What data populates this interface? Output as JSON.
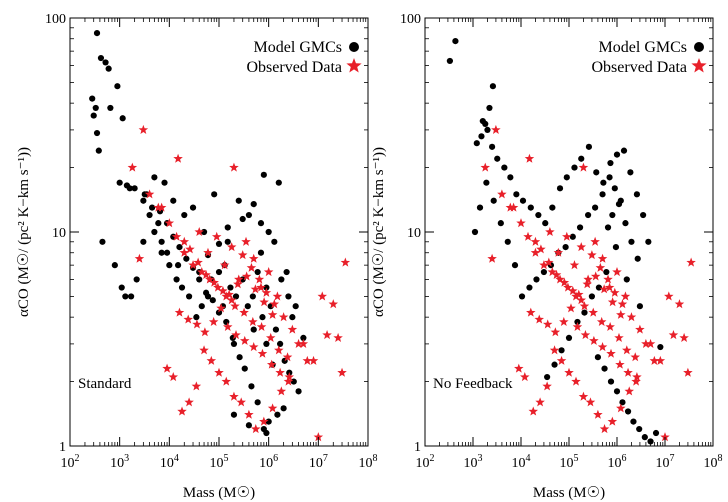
{
  "chart_data": [
    {
      "type": "scatter",
      "panel_label": "Standard",
      "xlabel": "Mass (M☉)",
      "ylabel": "αCO (M☉/ (pc² K−km s⁻¹))",
      "xscale": "log",
      "yscale": "log",
      "xlim": [
        100,
        100000000
      ],
      "ylim": [
        1,
        100
      ],
      "x_tick_labels": [
        "10^2",
        "10^3",
        "10^4",
        "10^5",
        "10^6",
        "10^7",
        "10^8"
      ],
      "y_tick_labels": [
        "1",
        "10",
        "100"
      ],
      "legend_position": "top-right",
      "grid": false,
      "series": [
        {
          "name": "Model GMCs",
          "marker": "circle",
          "color": "#000000",
          "x": [
            350,
            420,
            520,
            600,
            650,
            900,
            1150,
            280,
            300,
            350,
            380,
            330,
            1000,
            1600,
            3500,
            4000,
            5000,
            6000,
            8000,
            12000,
            20000,
            30000,
            50000,
            80000,
            150000,
            250000,
            400000,
            700000,
            1000000,
            1800000,
            2500000,
            3000000,
            500000,
            900000,
            1200000,
            200000,
            120000,
            60000,
            40000,
            15000,
            9000,
            7000,
            3000,
            2200,
            1700,
            1300,
            1100,
            800,
            450,
            3000,
            5000,
            7000,
            10000,
            14000,
            18000,
            25000,
            35000,
            45000,
            70000,
            100000,
            130000,
            170000,
            220000,
            300000,
            380000,
            480000,
            600000,
            750000,
            900000,
            1100000,
            1400000,
            1700000,
            2100000,
            2600000,
            3200000,
            4000000,
            2000000,
            1500000,
            1000000,
            800000,
            600000,
            450000,
            330000,
            260000,
            190000,
            140000,
            100000,
            75000,
            55000,
            40000,
            30000,
            22000,
            16000,
            12000,
            9000,
            6500,
            4500,
            3200,
            2000,
            1400,
            700000,
            1300000,
            2300000,
            3500000,
            5000000,
            900000,
            400000,
            200000,
            1600000,
            800000,
            500000,
            300000,
            150000,
            100000,
            60000
          ],
          "y": [
            85,
            65,
            62,
            58,
            38,
            48,
            34,
            42,
            35,
            29,
            24,
            38,
            17,
            16,
            15,
            12,
            18,
            11,
            17,
            14,
            12,
            13,
            10,
            15,
            9,
            14,
            12,
            8,
            10,
            6,
            5,
            4,
            3.5,
            3,
            2.4,
            3,
            4.5,
            5,
            6.5,
            7,
            8,
            9,
            9,
            6,
            5,
            5,
            5.5,
            7,
            9,
            14,
            10,
            8,
            7,
            6,
            5.5,
            5,
            4,
            4.5,
            6,
            6.5,
            7,
            5.5,
            5,
            6,
            4.5,
            5,
            6.5,
            4,
            5.5,
            4.5,
            3.5,
            3,
            2.5,
            2.2,
            2,
            1.8,
            1.5,
            1.4,
            1.3,
            1.2,
            1.6,
            1.9,
            2.3,
            2.6,
            3.2,
            3.8,
            4.2,
            4.8,
            5.2,
            6,
            6.8,
            7.5,
            8.5,
            9.5,
            11,
            12.5,
            13,
            15,
            16,
            16.5,
            11,
            9,
            6.5,
            4.5,
            3.2,
            1.15,
            1.25,
            1.4,
            17,
            18.5,
            13.5,
            11.5,
            10.5,
            8.8,
            7.8
          ]
        },
        {
          "name": "Observed Data",
          "marker": "star",
          "color": "#e8202a",
          "x": [
            3000,
            1800,
            15000,
            200000,
            2500,
            4000,
            7000,
            10000,
            20000,
            40000,
            60000,
            90000,
            130000,
            180000,
            250000,
            350000,
            500000,
            700000,
            1000000,
            1500000,
            2000000,
            3000000,
            5000000,
            8000000,
            12000000,
            20000000,
            35000000,
            30000000,
            15000000,
            10000000,
            25000000,
            6000000,
            4000000,
            2500000,
            1800000,
            1200000,
            800000,
            550000,
            400000,
            280000,
            200000,
            140000,
            100000,
            70000,
            50000,
            35000,
            25000,
            18000,
            12000,
            9000,
            6000,
            14000,
            20000,
            30000,
            45000,
            65000,
            95000,
            140000,
            210000,
            320000,
            480000,
            720000,
            1100000,
            1600000,
            2400000,
            300000,
            450000,
            650000,
            900000,
            1300000,
            180000,
            120000,
            80000,
            55000,
            38000,
            26000,
            150000,
            220000,
            330000,
            500000,
            750000,
            1150000,
            1700000,
            2600000,
            16000,
            24000,
            36000,
            52000,
            78000,
            110000,
            160000,
            240000,
            360000,
            540000,
            810000,
            1200000
          ],
          "y": [
            30,
            20,
            22,
            20,
            7.5,
            15,
            13,
            11,
            9,
            10,
            8,
            9.5,
            7,
            8.5,
            6,
            9,
            7.5,
            5.5,
            6.5,
            5,
            4,
            3.5,
            3,
            2.5,
            5,
            4.6,
            7.2,
            2.2,
            3.3,
            1.1,
            3.2,
            2.5,
            3,
            2,
            1.8,
            1.5,
            1.3,
            1.2,
            1.4,
            1.6,
            1.7,
            2,
            2.2,
            2.5,
            2.8,
            1.9,
            1.6,
            1.45,
            2.1,
            2.3,
            13,
            9.5,
            8,
            7,
            6.5,
            6,
            5.5,
            5,
            4.5,
            4.2,
            3.8,
            3.6,
            3.2,
            2.8,
            2.6,
            7.8,
            6.8,
            6,
            5.2,
            4.6,
            4.8,
            5.3,
            5.8,
            6.3,
            7.2,
            8.3,
            3.6,
            3.3,
            3.1,
            2.9,
            2.7,
            2.4,
            2.2,
            2.1,
            4.2,
            3.9,
            3.7,
            3.4,
            3.8,
            4.4,
            5.1,
            5.7,
            6.2,
            5.4,
            4.7,
            4.1
          ]
        }
      ]
    },
    {
      "type": "scatter",
      "panel_label": "No Feedback",
      "xlabel": "Mass (M☉)",
      "ylabel": "αCO (M☉/ (pc² K−km s⁻¹))",
      "xscale": "log",
      "yscale": "log",
      "xlim": [
        100,
        100000000
      ],
      "ylim": [
        1,
        100
      ],
      "x_tick_labels": [
        "10^2",
        "10^3",
        "10^4",
        "10^5",
        "10^6",
        "10^7",
        "10^8"
      ],
      "y_tick_labels": [
        "1",
        "10",
        "100"
      ],
      "legend_position": "top-right",
      "grid": false,
      "series": [
        {
          "name": "Model GMCs",
          "marker": "circle",
          "color": "#000000",
          "x": [
            430,
            330,
            2600,
            2200,
            1500,
            1800,
            2500,
            3200,
            4500,
            6000,
            8000,
            11000,
            16000,
            23000,
            32000,
            45000,
            65000,
            90000,
            130000,
            180000,
            260000,
            370000,
            520000,
            730000,
            1000000,
            1400000,
            1900000,
            2600000,
            3500000,
            4500000,
            1200000,
            900000,
            700000,
            500000,
            350000,
            250000,
            170000,
            120000,
            85000,
            60000,
            42000,
            30000,
            21000,
            15000,
            10500,
            7500,
            5300,
            3800,
            2700,
            1900,
            1400,
            1100,
            800000,
            1100000,
            1500000,
            2000000,
            2700000,
            600000,
            420000,
            300000,
            210000,
            150000,
            100000,
            70000,
            50000,
            35000,
            400000,
            550000,
            750000,
            1000000,
            1300000,
            1700000,
            2200000,
            2900000,
            3800000,
            5000000,
            6500000,
            8000000,
            3000000,
            1600000,
            950000,
            650000,
            2000,
            1600,
            1200
          ],
          "y": [
            78,
            63,
            48,
            38,
            28,
            32,
            25,
            22,
            20,
            18,
            15,
            14,
            13,
            12,
            11,
            13,
            16,
            18,
            20,
            22,
            25,
            19,
            17,
            21,
            23,
            24,
            19,
            15,
            12,
            9,
            14,
            16,
            18,
            15,
            13,
            12,
            10.5,
            9.5,
            8.5,
            8,
            7,
            6.5,
            6,
            5.5,
            5,
            7,
            9,
            11,
            14,
            17,
            13,
            10,
            12,
            13.5,
            11,
            9,
            7.5,
            6.5,
            5.5,
            5,
            4.2,
            3.8,
            3.2,
            2.8,
            2.4,
            2.1,
            2.6,
            2.3,
            2,
            1.8,
            1.6,
            1.45,
            1.3,
            1.2,
            1.1,
            1.05,
            1.15,
            2.9,
            4.5,
            6,
            8.5,
            10.5,
            30,
            33,
            26
          ]
        },
        {
          "name": "Observed Data",
          "marker": "star",
          "color": "#e8202a",
          "x": [
            3000,
            1800,
            15000,
            200000,
            2500,
            4000,
            7000,
            10000,
            20000,
            40000,
            60000,
            90000,
            130000,
            180000,
            250000,
            350000,
            500000,
            700000,
            1000000,
            1500000,
            2000000,
            3000000,
            5000000,
            8000000,
            12000000,
            20000000,
            35000000,
            30000000,
            15000000,
            10000000,
            25000000,
            6000000,
            4000000,
            2500000,
            1800000,
            1200000,
            800000,
            550000,
            400000,
            280000,
            200000,
            140000,
            100000,
            70000,
            50000,
            35000,
            25000,
            18000,
            12000,
            9000,
            6000,
            14000,
            20000,
            30000,
            45000,
            65000,
            95000,
            140000,
            210000,
            320000,
            480000,
            720000,
            1100000,
            1600000,
            2400000,
            300000,
            450000,
            650000,
            900000,
            1300000,
            180000,
            120000,
            80000,
            55000,
            38000,
            26000,
            150000,
            220000,
            330000,
            500000,
            750000,
            1150000,
            1700000,
            2600000,
            16000,
            24000,
            36000,
            52000,
            78000,
            110000,
            160000,
            240000,
            360000,
            540000,
            810000,
            1200000
          ],
          "y": [
            30,
            20,
            22,
            20,
            7.5,
            15,
            13,
            11,
            9,
            10,
            8,
            9.5,
            7,
            8.5,
            6,
            9,
            7.5,
            5.5,
            6.5,
            5,
            4,
            3.5,
            3,
            2.5,
            5,
            4.6,
            7.2,
            2.2,
            3.3,
            1.1,
            3.2,
            2.5,
            3,
            2,
            1.8,
            1.5,
            1.3,
            1.2,
            1.4,
            1.6,
            1.7,
            2,
            2.2,
            2.5,
            2.8,
            1.9,
            1.6,
            1.45,
            2.1,
            2.3,
            13,
            9.5,
            8,
            7,
            6.5,
            6,
            5.5,
            5,
            4.5,
            4.2,
            3.8,
            3.6,
            3.2,
            2.8,
            2.6,
            7.8,
            6.8,
            6,
            5.2,
            4.6,
            4.8,
            5.3,
            5.8,
            6.3,
            7.2,
            8.3,
            3.6,
            3.3,
            3.1,
            2.9,
            2.7,
            2.4,
            2.2,
            2.1,
            4.2,
            3.9,
            3.7,
            3.4,
            3.8,
            4.4,
            5.1,
            5.7,
            6.2,
            5.4,
            4.7,
            4.1
          ]
        }
      ]
    }
  ]
}
